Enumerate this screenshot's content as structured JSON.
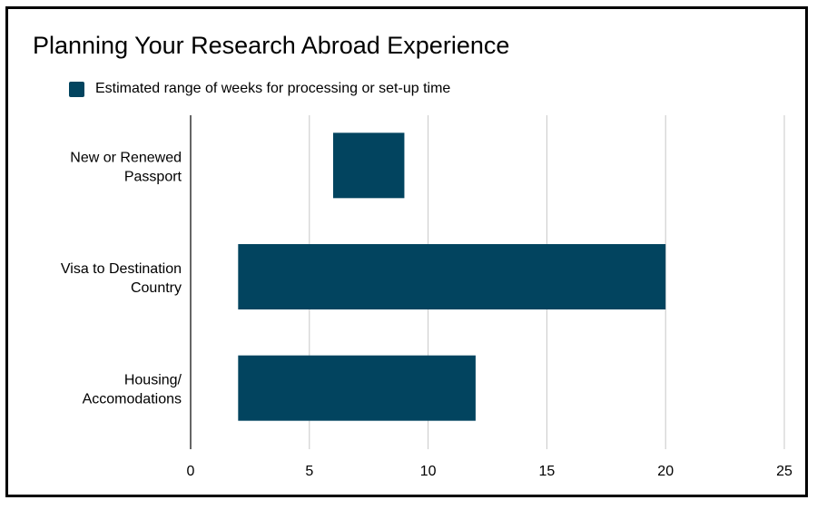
{
  "colors": {
    "bar": "#02445f",
    "grid": "#c8c8c8",
    "axis": "#333333"
  },
  "chart_data": {
    "type": "bar",
    "orientation": "horizontal",
    "title": "Planning Your Research Abroad Experience",
    "xlabel": "",
    "ylabel": "",
    "xlim": [
      0,
      25
    ],
    "xticks": [
      0,
      5,
      10,
      15,
      20,
      25
    ],
    "grid": true,
    "legend_position": "top-left",
    "categories": [
      [
        "New or Renewed",
        "Passport"
      ],
      [
        "Visa to Destination",
        "Country"
      ],
      [
        "Housing/",
        "Accomodations"
      ]
    ],
    "series": [
      {
        "name": "Estimated range of weeks for processing or set-up time",
        "ranges": [
          [
            6,
            9
          ],
          [
            2,
            20
          ],
          [
            2,
            12
          ]
        ]
      }
    ]
  }
}
